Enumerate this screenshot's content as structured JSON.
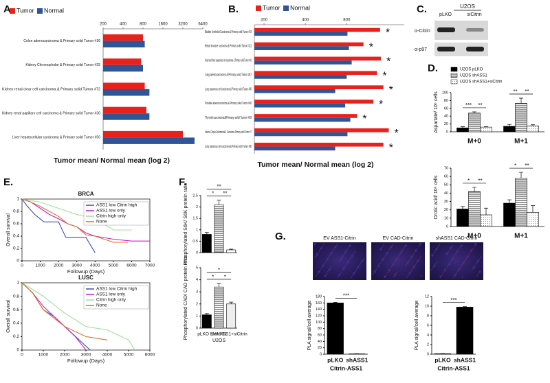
{
  "panels": {
    "a": "A.",
    "b": "B.",
    "c": "C.",
    "d": "D.",
    "e": "E.",
    "f": "F.",
    "g": "G."
  },
  "blot": {
    "cell_line": "U2OS",
    "lanes": [
      "pLKO",
      "siCitrin"
    ],
    "antibodies": [
      "α-Citrin",
      "α-p97"
    ]
  },
  "micrographs": {
    "titles": [
      "EV ASS1-Citrin",
      "EV CAD-Citrin",
      "shASS1 CAD-Citrin"
    ]
  },
  "chart_data": [
    {
      "type": "bar",
      "horizontal": true,
      "log": true,
      "xlabel": "Tumor mean/ Normal mean (log 2)",
      "categories": [
        "Colon adenocarcinoma & Primary solid Tumor #26",
        "Kidney Chromophobe & Primary solid Tumor #25",
        "Kidney renal clear cell carcinoma & Primary solid Tumor #72",
        "Kidney renal papillary cell carcinoma & Primary solid Tumor #30",
        "Liver hepatocellular carcinoma & Primary solid Tumor #50"
      ],
      "series": [
        {
          "name": "Tumor",
          "color": "#e8211d",
          "values": [
            800,
            750,
            850,
            900,
            3200
          ]
        },
        {
          "name": "Normal",
          "color": "#2f5597",
          "values": [
            850,
            800,
            1000,
            1000,
            4800
          ]
        }
      ],
      "xlim": [
        200,
        6400
      ],
      "xticks": [
        200,
        400,
        800,
        1600,
        3200,
        6400
      ],
      "legend": "top-left"
    },
    {
      "type": "bar",
      "horizontal": true,
      "log": true,
      "xlabel": "Tumor mean/ Normal mean (log 2)",
      "categories": [
        "Bladder Urothelial Carcinoma & Primary solid Tumor #19",
        "Breast Invasive carcinoma & Primary solid Tumor #111",
        "Head and Neck squamous cell carcinoma & Primary solid Tumor #41",
        "Lung adenocarcinoma & Primary solid Tumor #57",
        "Lung squamous cell carcinoma & Primary solid Tumor #50",
        "Prostate adenocarcinoma & Primary solid Tumor #50",
        "Thyroid carcinoma&Primary solid Tumor #59",
        "Uterine Corpus Endometrial & Carcinoma Primary solid Tumor #7",
        "Lung squamous cell carcinoma & Primary solid Tumor #50"
      ],
      "series": [
        {
          "name": "Tumor",
          "color": "#e8211d",
          "values": [
            1400,
            1060,
            1420,
            1330,
            1480,
            1250,
            950,
            1620,
            1480
          ]
        },
        {
          "name": "Normal",
          "color": "#2f5597",
          "values": [
            810,
            830,
            870,
            800,
            660,
            780,
            850,
            810,
            660
          ]
        }
      ],
      "annotations": [
        "*",
        "*",
        "*",
        "*",
        "*",
        "*",
        "*",
        "*",
        "*"
      ],
      "xlim": [
        170,
        2100
      ],
      "xticks": [
        200,
        400,
        800
      ],
      "legend": "top-left"
    },
    {
      "type": "bar",
      "ylabel": "Aspartate/ 10⁶ cells",
      "categories": [
        "M+0",
        "M+1"
      ],
      "series": [
        {
          "name": "U2OS pLKO",
          "color": "#000000",
          "pattern": "solid",
          "values": [
            10,
            14
          ],
          "errors": [
            3,
            5
          ]
        },
        {
          "name": "U2OS shASS1",
          "color": "#ffffff",
          "pattern": "hlines",
          "values": [
            48,
            73
          ],
          "errors": [
            3,
            13
          ]
        },
        {
          "name": "U2OS shASS1+siCitrin",
          "color": "#ffffff",
          "pattern": "dots",
          "values": [
            12,
            15
          ],
          "errors": [
            1,
            3
          ]
        }
      ],
      "annotations": [
        "***",
        "**",
        "**",
        "**"
      ],
      "ylim": [
        0,
        100
      ],
      "yticks": [
        0,
        20,
        40,
        60,
        80,
        100
      ],
      "legend": "top-left"
    },
    {
      "type": "bar",
      "ylabel": "Orotic acid/ 10⁶ cells",
      "categories": [
        "M+0",
        "M+1"
      ],
      "series": [
        {
          "color": "#000000",
          "pattern": "solid",
          "values": [
            21,
            28
          ],
          "errors": [
            3,
            4
          ]
        },
        {
          "color": "#ffffff",
          "pattern": "hlines",
          "values": [
            42,
            58
          ],
          "errors": [
            5,
            7
          ]
        },
        {
          "color": "#ffffff",
          "pattern": "dots",
          "values": [
            14,
            17
          ],
          "errors": [
            8,
            8
          ]
        }
      ],
      "annotations": [
        "*",
        "**",
        "*",
        "**"
      ],
      "ylim": [
        0,
        70
      ],
      "yticks": [
        0,
        10,
        20,
        30,
        40,
        50,
        60,
        70
      ]
    },
    {
      "type": "line",
      "title": "BRCA",
      "xlabel": "Followup (Days)",
      "ylabel": "Overall survival",
      "series": [
        {
          "name": "ASS1 low Citrin high",
          "color": "#3b4cc0",
          "x": [
            0,
            300,
            700,
            1200,
            2000,
            2400,
            3500,
            4000
          ],
          "values": [
            1,
            0.88,
            0.75,
            0.63,
            0.63,
            0.38,
            0.38,
            0.13
          ]
        },
        {
          "name": "ASS1 low only",
          "color": "#c81ec8",
          "x": [
            0,
            500,
            1000,
            1500,
            2000,
            2500,
            3000,
            3500,
            4000,
            5000,
            6000,
            7000
          ],
          "values": [
            1,
            0.95,
            0.85,
            0.75,
            0.68,
            0.6,
            0.55,
            0.45,
            0.4,
            0.35,
            0.32,
            0.32
          ]
        },
        {
          "name": "Citrin high only",
          "color": "#9be09b",
          "x": [
            0,
            1000,
            2000,
            3000,
            4000,
            5000,
            6000
          ],
          "values": [
            1,
            0.95,
            0.85,
            0.75,
            0.68,
            0.5,
            0.5
          ]
        },
        {
          "name": "None",
          "color": "#e07020",
          "x": [
            0,
            500,
            1000,
            2000,
            2500,
            3000,
            3500,
            4000,
            5000,
            5800
          ],
          "values": [
            1,
            0.95,
            0.88,
            0.72,
            0.6,
            0.55,
            0.42,
            0.4,
            0.3,
            0.3
          ]
        }
      ],
      "xlim": [
        0,
        7000
      ],
      "xticks": [
        0,
        1000,
        2000,
        3000,
        4000,
        5000,
        6000,
        7000
      ],
      "ylim": [
        0,
        1
      ],
      "yticks": [
        0,
        0.2,
        0.4,
        0.6,
        0.8,
        1
      ],
      "legend": "top-right"
    },
    {
      "type": "line",
      "title": "LUSC",
      "xlabel": "Followup (Days)",
      "ylabel": "Overall survival",
      "series": [
        {
          "name": "ASS1 low Citrin high",
          "color": "#3b4cc0",
          "x": [
            0,
            500,
            1000,
            1500,
            2000,
            3200
          ],
          "values": [
            1,
            0.85,
            0.6,
            0.5,
            0.35,
            0
          ]
        },
        {
          "name": "ASS1 low only",
          "color": "#c81ec8",
          "x": [
            0,
            500,
            1000,
            1500,
            2000,
            2500,
            3000
          ],
          "values": [
            1,
            0.85,
            0.65,
            0.5,
            0.35,
            0.2,
            0
          ]
        },
        {
          "name": "Citrin high only",
          "color": "#9be09b",
          "x": [
            0,
            1000,
            2000,
            3000,
            4000,
            5000,
            5300
          ],
          "values": [
            1,
            0.8,
            0.55,
            0.35,
            0.3,
            0.15,
            0
          ]
        },
        {
          "name": "None",
          "color": "#e07020",
          "x": [
            0,
            500,
            1000,
            2000,
            3000,
            4000
          ],
          "values": [
            1,
            0.85,
            0.6,
            0.35,
            0.2,
            0.15
          ]
        }
      ],
      "xlim": [
        0,
        6000
      ],
      "xticks": [
        0,
        1000,
        2000,
        3000,
        4000,
        5000,
        6000
      ],
      "ylim": [
        0,
        1
      ],
      "yticks": [
        0,
        0.2,
        0.4,
        0.6,
        0.8,
        1
      ],
      "legend": "top-right"
    },
    {
      "type": "bar",
      "ylabel": "Phosphorylated S6K/ S6K protein ratio",
      "series": [
        {
          "color": "#000000",
          "pattern": "solid",
          "values": [
            0.8,
            2.1,
            0.12
          ],
          "errors": [
            0.08,
            0.2,
            0.03
          ]
        }
      ],
      "bar_patterns": [
        "solid",
        "hlines",
        "solid"
      ],
      "bar_colors": [
        "#000000",
        "#dddddd",
        "#ffffff"
      ],
      "annotations": [
        "**",
        "*",
        "**"
      ],
      "ylim": [
        0,
        2.5
      ],
      "yticks": [
        0,
        0.5,
        1,
        1.5,
        2,
        2.5
      ]
    },
    {
      "type": "bar",
      "ylabel": "Phosphorylated CAD/ CAD protein ratio",
      "xlabel": "U2OS",
      "categories": [
        "pLKO EV",
        "shASS1",
        "shASS1+siCitrin"
      ],
      "series": [
        {
          "color": "#000000",
          "pattern": "solid",
          "values": [
            1.1,
            3.4,
            2.0
          ],
          "errors": [
            0.1,
            0.3,
            0.15
          ]
        }
      ],
      "bar_patterns": [
        "solid",
        "hlines",
        "solid"
      ],
      "bar_colors": [
        "#000000",
        "#dddddd",
        "#eeeeee"
      ],
      "annotations": [
        "*",
        "*",
        "*"
      ],
      "ylim": [
        0,
        5
      ],
      "yticks": [
        0,
        1,
        2,
        3,
        4,
        5
      ]
    },
    {
      "type": "bar",
      "ylabel": "PLA signal/cell average",
      "xlabel": "Citrin-ASS1",
      "categories": [
        "pLKO",
        "shASS1"
      ],
      "series": [
        {
          "color": "#000000",
          "pattern": "solid",
          "values": [
            160,
            1
          ],
          "errors": [
            2,
            0.5
          ]
        }
      ],
      "annotations": [
        "***"
      ],
      "ylim": [
        0,
        180
      ],
      "yticks": [
        0,
        20,
        40,
        60,
        80,
        100,
        120,
        140,
        160,
        180
      ]
    },
    {
      "type": "bar",
      "ylabel": "PLA signal/cell average",
      "xlabel": "Citrin-ASS1",
      "categories": [
        "pLKO",
        "shASS1"
      ],
      "series": [
        {
          "color": "#000000",
          "pattern": "solid",
          "values": [
            0.1,
            9.8
          ],
          "errors": [
            0.02,
            0.1
          ]
        }
      ],
      "annotations": [
        "***"
      ],
      "ylim": [
        0,
        12
      ],
      "yticks": [
        0,
        2,
        4,
        6,
        8,
        10,
        12
      ]
    }
  ]
}
